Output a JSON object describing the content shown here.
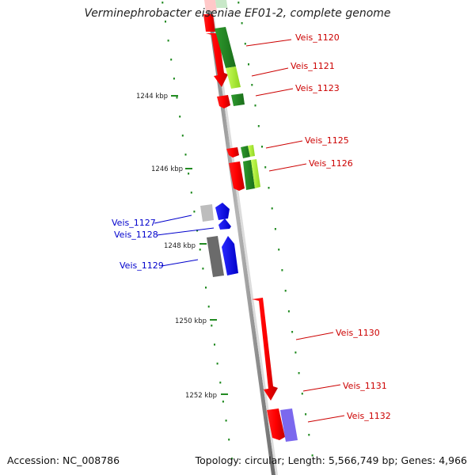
{
  "title": "Verminephrobacter eiseniae EF01-2, complete genome",
  "accession": "Accession: NC_008786",
  "summary": "Topology: circular; Length: 5,566,749 bp; Genes: 4,966",
  "colors": {
    "backbone": "#8c8c8c",
    "forward_cds": "#ff0000",
    "reverse_cds": "#0000ff",
    "rna_dark": "#228b22",
    "rna_light": "#adff2f",
    "gray_feature": "#6b6b6b",
    "light_gray_feature": "#bdbdbd",
    "purple_feature": "#7b68ee",
    "ruler": "#228b22"
  },
  "ruler_labels": [
    "1244 kbp",
    "1246 kbp",
    "1248 kbp",
    "1250 kbp",
    "1252 kbp"
  ],
  "gene_labels": [
    {
      "text": "Veis_1120",
      "color": "#cc0000"
    },
    {
      "text": "Veis_1121",
      "color": "#cc0000"
    },
    {
      "text": "Veis_1123",
      "color": "#cc0000"
    },
    {
      "text": "Veis_1125",
      "color": "#cc0000"
    },
    {
      "text": "Veis_1126",
      "color": "#cc0000"
    },
    {
      "text": "Veis_1127",
      "color": "#0000cc"
    },
    {
      "text": "Veis_1128",
      "color": "#0000cc"
    },
    {
      "text": "Veis_1129",
      "color": "#0000cc"
    },
    {
      "text": "Veis_1130",
      "color": "#cc0000"
    },
    {
      "text": "Veis_1131",
      "color": "#cc0000"
    },
    {
      "text": "Veis_1132",
      "color": "#cc0000"
    }
  ]
}
